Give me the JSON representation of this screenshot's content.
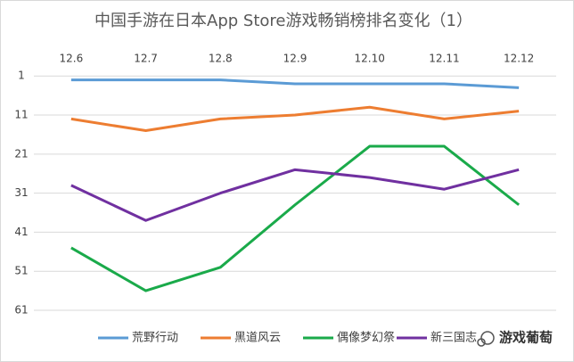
{
  "chart_data": {
    "type": "line",
    "title": "中国手游在日本App Store游戏畅销榜排名变化（1）",
    "categories": [
      "12.6",
      "12.7",
      "12.8",
      "12.9",
      "12.10",
      "12.11",
      "12.12"
    ],
    "series": [
      {
        "name": "荒野行动",
        "color": "#5b9bd5",
        "values": [
          2,
          2,
          2,
          3,
          3,
          3,
          4
        ]
      },
      {
        "name": "黑道风云",
        "color": "#ed7d31",
        "values": [
          12,
          15,
          12,
          11,
          9,
          12,
          10
        ]
      },
      {
        "name": "偶像梦幻祭",
        "color": "#1aaa4a",
        "values": [
          45,
          56,
          50,
          34,
          19,
          19,
          34
        ]
      },
      {
        "name": "新三国志",
        "color": "#7030a0",
        "values": [
          29,
          38,
          31,
          25,
          27,
          30,
          25
        ]
      }
    ],
    "ylim": [
      -7.5,
      61
    ],
    "yticks": [
      1,
      11,
      21,
      31,
      41,
      51,
      61
    ],
    "reversed": true,
    "grid": true,
    "legend": "bottom",
    "watermark": "游戏葡萄"
  }
}
